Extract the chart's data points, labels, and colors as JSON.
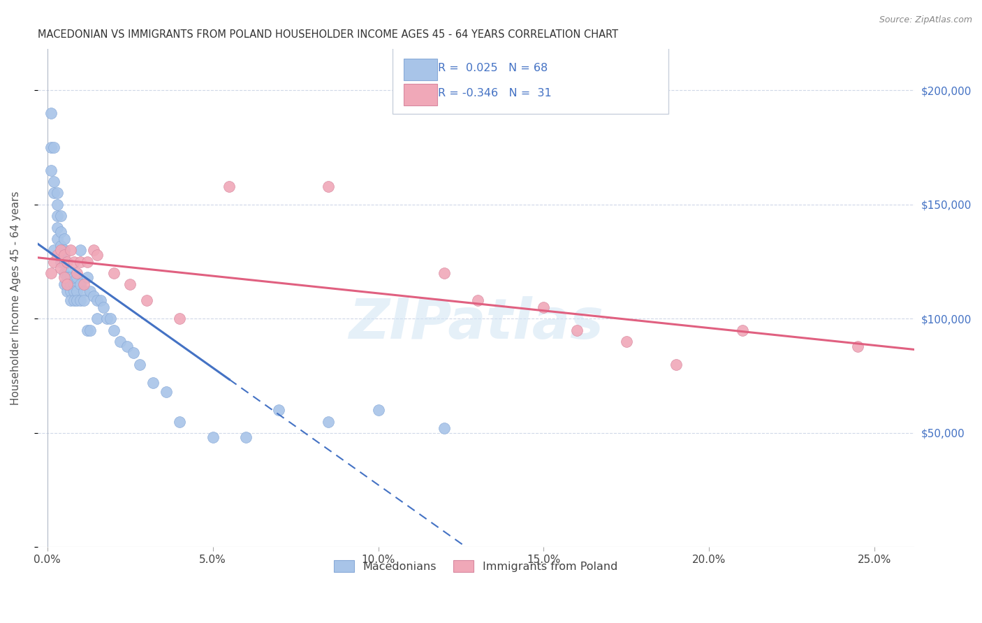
{
  "title": "MACEDONIAN VS IMMIGRANTS FROM POLAND HOUSEHOLDER INCOME AGES 45 - 64 YEARS CORRELATION CHART",
  "source": "Source: ZipAtlas.com",
  "ylabel": "Householder Income Ages 45 - 64 years",
  "xlabel_ticks": [
    0.0,
    0.05,
    0.1,
    0.15,
    0.2,
    0.25
  ],
  "xlabel_labels": [
    "0.0%",
    "5.0%",
    "10.0%",
    "15.0%",
    "20.0%",
    "25.0%"
  ],
  "ytick_values": [
    0,
    50000,
    100000,
    150000,
    200000
  ],
  "ytick_labels": [
    "",
    "$50,000",
    "$100,000",
    "$150,000",
    "$200,000"
  ],
  "xlim": [
    -0.003,
    0.262
  ],
  "ylim": [
    0,
    218000
  ],
  "macedonian_color": "#a8c4e8",
  "poland_color": "#f0a8b8",
  "macedonian_line_color": "#4472c4",
  "poland_line_color": "#e06080",
  "legend_text_color": "#4472c4",
  "background_color": "#ffffff",
  "grid_color": "#d0d8e8",
  "watermark_color": "#d0e4f4",
  "mac_x": [
    0.001,
    0.001,
    0.001,
    0.002,
    0.002,
    0.002,
    0.002,
    0.003,
    0.003,
    0.003,
    0.003,
    0.003,
    0.004,
    0.004,
    0.004,
    0.004,
    0.004,
    0.005,
    0.005,
    0.005,
    0.005,
    0.005,
    0.005,
    0.006,
    0.006,
    0.006,
    0.006,
    0.007,
    0.007,
    0.007,
    0.007,
    0.008,
    0.008,
    0.008,
    0.008,
    0.009,
    0.009,
    0.009,
    0.01,
    0.01,
    0.01,
    0.011,
    0.011,
    0.012,
    0.012,
    0.013,
    0.013,
    0.014,
    0.015,
    0.015,
    0.016,
    0.017,
    0.018,
    0.019,
    0.02,
    0.022,
    0.024,
    0.026,
    0.028,
    0.032,
    0.036,
    0.04,
    0.05,
    0.06,
    0.07,
    0.085,
    0.1,
    0.12
  ],
  "mac_y": [
    190000,
    175000,
    165000,
    175000,
    160000,
    130000,
    155000,
    155000,
    150000,
    145000,
    140000,
    135000,
    145000,
    138000,
    132000,
    128000,
    125000,
    135000,
    130000,
    125000,
    120000,
    115000,
    125000,
    120000,
    118000,
    115000,
    112000,
    118000,
    115000,
    112000,
    108000,
    115000,
    112000,
    108000,
    118000,
    112000,
    108000,
    118000,
    115000,
    108000,
    130000,
    112000,
    108000,
    95000,
    118000,
    112000,
    95000,
    110000,
    108000,
    100000,
    108000,
    105000,
    100000,
    100000,
    95000,
    90000,
    88000,
    85000,
    80000,
    72000,
    68000,
    55000,
    48000,
    48000,
    60000,
    55000,
    60000,
    52000
  ],
  "pol_x": [
    0.001,
    0.002,
    0.003,
    0.004,
    0.004,
    0.005,
    0.005,
    0.006,
    0.006,
    0.007,
    0.008,
    0.009,
    0.01,
    0.011,
    0.012,
    0.014,
    0.015,
    0.02,
    0.025,
    0.03,
    0.04,
    0.055,
    0.085,
    0.12,
    0.13,
    0.15,
    0.16,
    0.175,
    0.19,
    0.21,
    0.245
  ],
  "pol_y": [
    120000,
    125000,
    128000,
    130000,
    122000,
    128000,
    118000,
    125000,
    115000,
    130000,
    125000,
    120000,
    125000,
    115000,
    125000,
    130000,
    128000,
    120000,
    115000,
    108000,
    100000,
    158000,
    158000,
    120000,
    108000,
    105000,
    95000,
    90000,
    80000,
    95000,
    88000
  ]
}
